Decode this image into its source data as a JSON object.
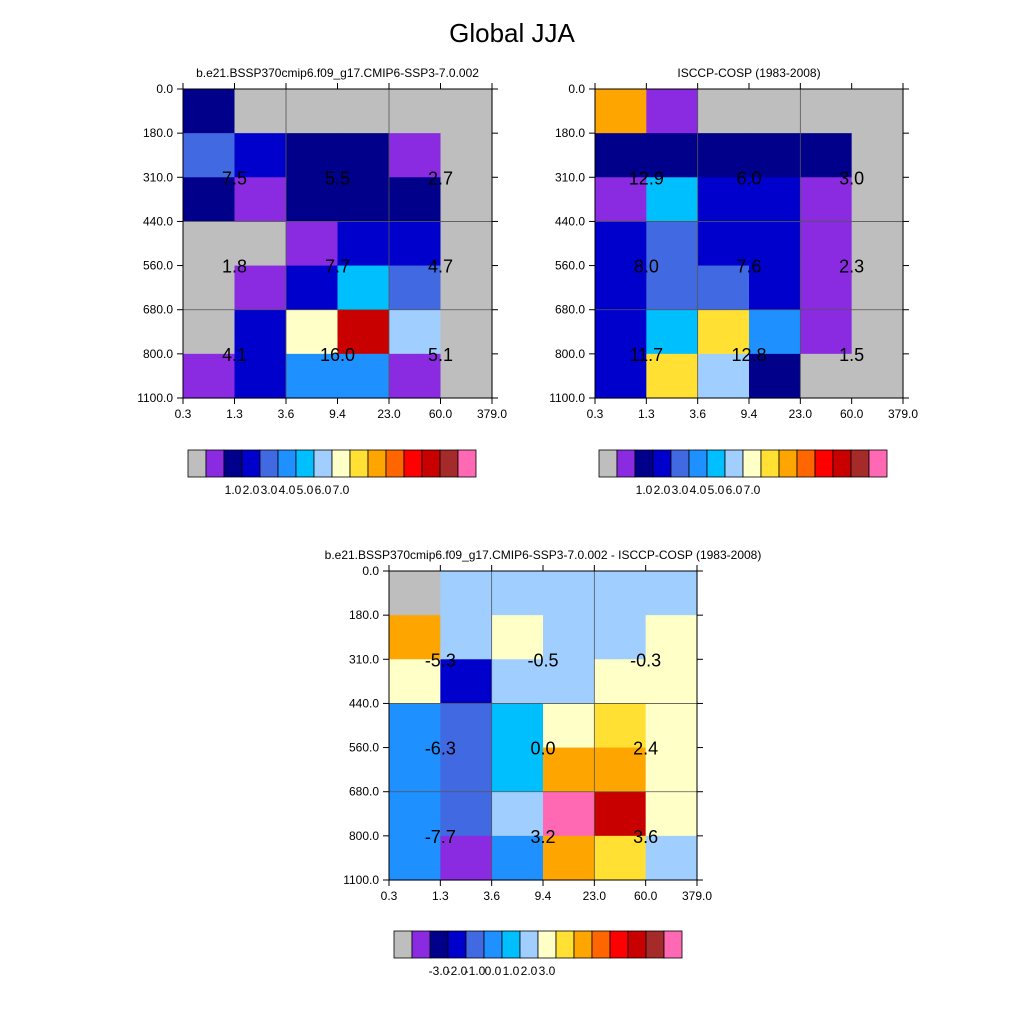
{
  "page": {
    "title": "Global JJA"
  },
  "palette": [
    "#bebebe",
    "#8a2be2",
    "#00008b",
    "#0000cd",
    "#4169e1",
    "#1e90ff",
    "#00bfff",
    "#a0cfff",
    "#ffffc8",
    "#ffe033",
    "#ffa500",
    "#ff6600",
    "#ff0000",
    "#c80000",
    "#a52a2a",
    "#ff69b4"
  ],
  "chart_data": [
    {
      "type": "heatmap",
      "title": "b.e21.BSSP370cmip6.f09_g17.CMIP6-SSP3-7.0.002",
      "x_ticks": [
        "0.3",
        "1.3",
        "3.6",
        "9.4",
        "23.0",
        "60.0",
        "379.0"
      ],
      "y_ticks": [
        "0.0",
        "180.0",
        "310.0",
        "440.0",
        "560.0",
        "680.0",
        "800.0",
        "1100.0"
      ],
      "cell_colors": [
        [
          2,
          0,
          0,
          0,
          0,
          0
        ],
        [
          4,
          3,
          2,
          2,
          1,
          0
        ],
        [
          2,
          1,
          2,
          2,
          2,
          0
        ],
        [
          0,
          0,
          1,
          3,
          3,
          0
        ],
        [
          0,
          1,
          3,
          6,
          4,
          0
        ],
        [
          0,
          3,
          8,
          13,
          7,
          0
        ],
        [
          1,
          3,
          5,
          5,
          1,
          0
        ]
      ],
      "block_labels": [
        {
          "label": "7.5",
          "col": 1,
          "row": 2
        },
        {
          "label": "5.5",
          "col": 3,
          "row": 2
        },
        {
          "label": "2.7",
          "col": 5,
          "row": 2
        },
        {
          "label": "1.8",
          "col": 1,
          "row": 4
        },
        {
          "label": "7.7",
          "col": 3,
          "row": 4
        },
        {
          "label": "4.7",
          "col": 5,
          "row": 4
        },
        {
          "label": "4.1",
          "col": 1,
          "row": 6
        },
        {
          "label": "16.0",
          "col": 3,
          "row": 6
        },
        {
          "label": "5.1",
          "col": 5,
          "row": 6
        }
      ],
      "colorbar": {
        "labels": [
          "1.0",
          "2.0",
          "3.0",
          "4.0",
          "5.0",
          "6.0",
          "7.0"
        ]
      }
    },
    {
      "type": "heatmap",
      "title": "ISCCP-COSP (1983-2008)",
      "x_ticks": [
        "0.3",
        "1.3",
        "3.6",
        "9.4",
        "23.0",
        "60.0",
        "379.0"
      ],
      "y_ticks": [
        "0.0",
        "180.0",
        "310.0",
        "440.0",
        "560.0",
        "680.0",
        "800.0",
        "1100.0"
      ],
      "cell_colors": [
        [
          10,
          1,
          0,
          0,
          0,
          0
        ],
        [
          2,
          2,
          2,
          2,
          2,
          0
        ],
        [
          1,
          6,
          3,
          3,
          1,
          0
        ],
        [
          3,
          4,
          3,
          3,
          1,
          0
        ],
        [
          3,
          4,
          4,
          3,
          1,
          0
        ],
        [
          3,
          6,
          9,
          5,
          1,
          0
        ],
        [
          3,
          9,
          7,
          2,
          0,
          0
        ]
      ],
      "block_labels": [
        {
          "label": "12.9",
          "col": 1,
          "row": 2
        },
        {
          "label": "6.0",
          "col": 3,
          "row": 2
        },
        {
          "label": "3.0",
          "col": 5,
          "row": 2
        },
        {
          "label": "8.0",
          "col": 1,
          "row": 4
        },
        {
          "label": "7.6",
          "col": 3,
          "row": 4
        },
        {
          "label": "2.3",
          "col": 5,
          "row": 4
        },
        {
          "label": "11.7",
          "col": 1,
          "row": 6
        },
        {
          "label": "12.8",
          "col": 3,
          "row": 6
        },
        {
          "label": "1.5",
          "col": 5,
          "row": 6
        }
      ],
      "colorbar": {
        "labels": [
          "1.0",
          "2.0",
          "3.0",
          "4.0",
          "5.0",
          "6.0",
          "7.0"
        ]
      }
    },
    {
      "type": "heatmap",
      "title": "b.e21.BSSP370cmip6.f09_g17.CMIP6-SSP3-7.0.002 - ISCCP-COSP (1983-2008)",
      "x_ticks": [
        "0.3",
        "1.3",
        "3.6",
        "9.4",
        "23.0",
        "60.0",
        "379.0"
      ],
      "y_ticks": [
        "0.0",
        "180.0",
        "310.0",
        "440.0",
        "560.0",
        "680.0",
        "800.0",
        "1100.0"
      ],
      "cell_colors": [
        [
          0,
          7,
          7,
          7,
          7,
          7
        ],
        [
          10,
          7,
          8,
          7,
          7,
          8
        ],
        [
          8,
          3,
          7,
          7,
          8,
          8
        ],
        [
          5,
          4,
          6,
          8,
          9,
          8
        ],
        [
          5,
          4,
          6,
          10,
          10,
          8
        ],
        [
          5,
          4,
          7,
          15,
          13,
          8
        ],
        [
          5,
          1,
          5,
          10,
          9,
          7
        ]
      ],
      "block_labels": [
        {
          "label": "-5.3",
          "col": 1,
          "row": 2
        },
        {
          "label": "-0.5",
          "col": 3,
          "row": 2
        },
        {
          "label": "-0.3",
          "col": 5,
          "row": 2
        },
        {
          "label": "-6.3",
          "col": 1,
          "row": 4
        },
        {
          "label": "0.0",
          "col": 3,
          "row": 4
        },
        {
          "label": "2.4",
          "col": 5,
          "row": 4
        },
        {
          "label": "-7.7",
          "col": 1,
          "row": 6
        },
        {
          "label": "3.2",
          "col": 3,
          "row": 6
        },
        {
          "label": "3.6",
          "col": 5,
          "row": 6
        }
      ],
      "colorbar": {
        "labels": [
          "-3.0",
          "-2.0",
          "-1.0",
          "0.0",
          "1.0",
          "2.0",
          "3.0"
        ]
      }
    }
  ]
}
